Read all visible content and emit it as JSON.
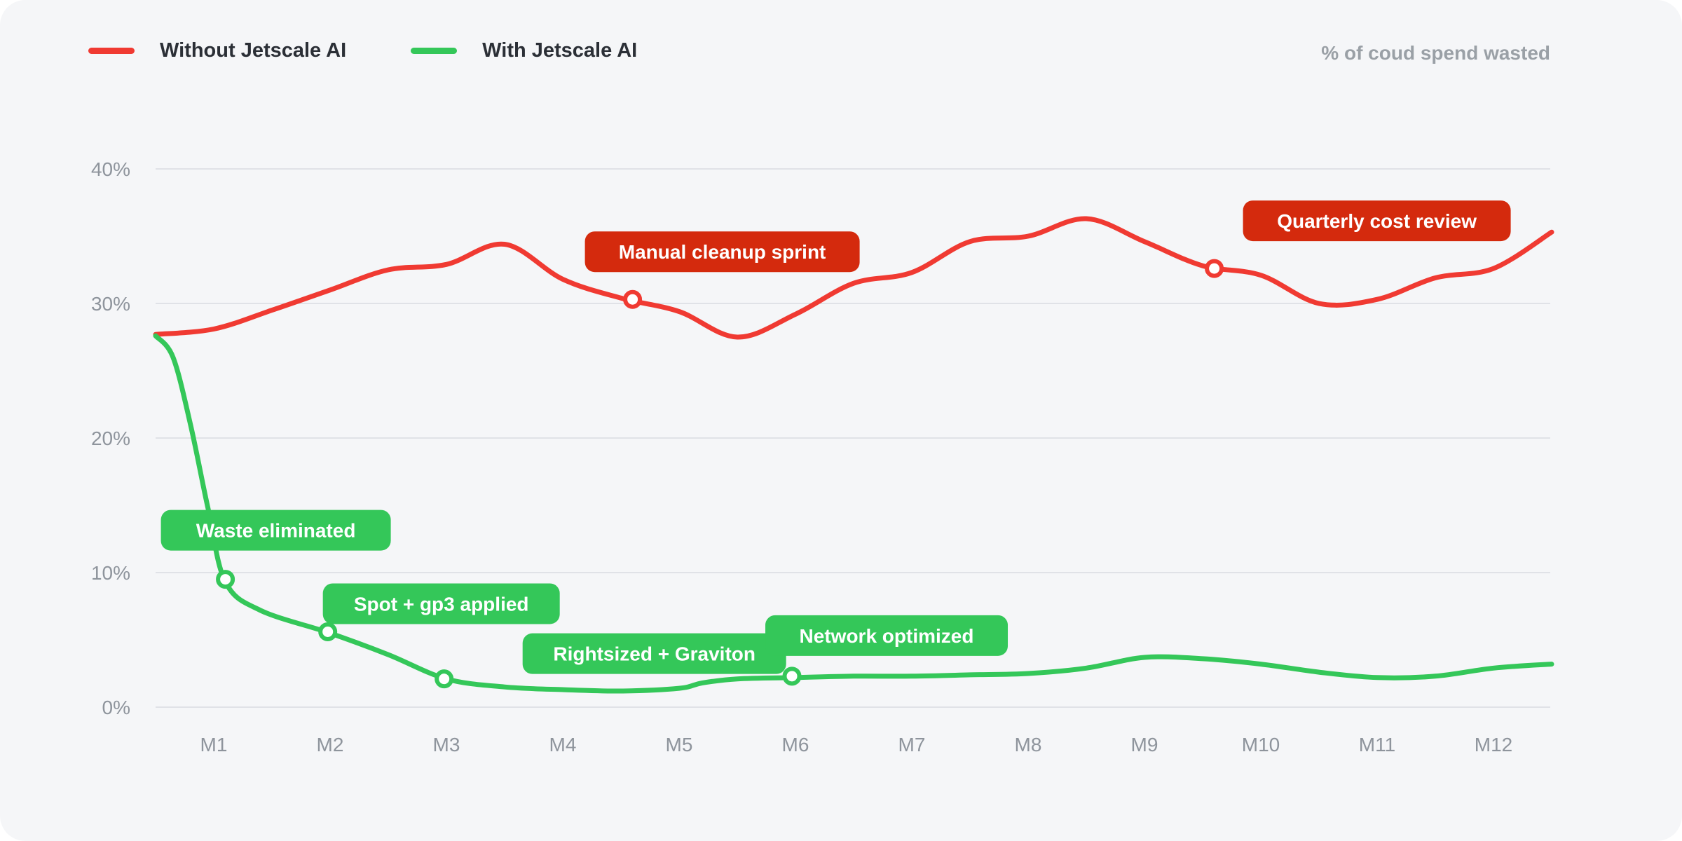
{
  "legend": {
    "items": [
      {
        "label": "Without Jetscale AI",
        "color": "#f03a32"
      },
      {
        "label": "With Jetscale AI",
        "color": "#34c759"
      }
    ]
  },
  "unit_label": "% of coud spend wasted",
  "chart_data": {
    "type": "line",
    "xlabel": "",
    "ylabel": "",
    "categories": [
      "M1",
      "M2",
      "M3",
      "M4",
      "M5",
      "M6",
      "M7",
      "M8",
      "M9",
      "M10",
      "M11",
      "M12"
    ],
    "y_ticks": [
      "0%",
      "10%",
      "20%",
      "30%",
      "40%"
    ],
    "ylim": [
      0,
      40
    ],
    "grid": true,
    "legend_position": "top-left",
    "series": [
      {
        "name": "Without Jetscale AI",
        "color": "#f03a32",
        "x": [
          0.5,
          1,
          1.5,
          2,
          2.5,
          3,
          3.5,
          4,
          4.5,
          5,
          5.5,
          6,
          6.5,
          7,
          7.5,
          8,
          8.5,
          9,
          9.5,
          10,
          10.5,
          11,
          11.5,
          12,
          12.5
        ],
        "values": [
          27.7,
          28.1,
          29.5,
          31.0,
          32.5,
          32.9,
          34.4,
          31.8,
          30.4,
          29.4,
          27.5,
          29.2,
          31.5,
          32.3,
          34.6,
          35.0,
          36.3,
          34.6,
          32.8,
          32.1,
          30.0,
          30.3,
          31.9,
          32.6,
          35.3
        ]
      },
      {
        "name": "With Jetscale AI",
        "color": "#34c759",
        "x": [
          0.5,
          0.65,
          0.8,
          0.95,
          1.1,
          1.4,
          2.0,
          2.5,
          3.0,
          3.5,
          4.0,
          4.5,
          5.0,
          5.2,
          5.5,
          6.0,
          6.5,
          7.0,
          7.5,
          8.0,
          8.5,
          9.0,
          9.5,
          10.0,
          10.5,
          11.0,
          11.5,
          12.0,
          12.5
        ],
        "values": [
          27.6,
          26.0,
          21.0,
          14.8,
          9.3,
          7.2,
          5.5,
          3.9,
          2.1,
          1.5,
          1.3,
          1.2,
          1.4,
          1.8,
          2.1,
          2.2,
          2.3,
          2.3,
          2.4,
          2.5,
          2.9,
          3.7,
          3.6,
          3.2,
          2.6,
          2.2,
          2.3,
          2.9,
          3.2
        ]
      }
    ],
    "annotations": [
      {
        "text": "Manual cleanup sprint",
        "series": "Without Jetscale AI",
        "x": 4.6,
        "y": 30.3,
        "color": "#d42a0d"
      },
      {
        "text": "Quarterly cost review",
        "series": "Without Jetscale AI",
        "x": 9.6,
        "y": 32.6,
        "color": "#d42a0d"
      },
      {
        "text": "Waste eliminated",
        "series": "With Jetscale AI",
        "x": 1.1,
        "y": 9.5,
        "color": "#34c759"
      },
      {
        "text": "Spot + gp3 applied",
        "series": "With Jetscale AI",
        "x": 1.98,
        "y": 5.6,
        "color": "#34c759"
      },
      {
        "text": "Rightsized + Graviton",
        "series": "With Jetscale AI",
        "x": 2.98,
        "y": 2.1,
        "color": "#34c759"
      },
      {
        "text": "Network optimized",
        "series": "With Jetscale AI",
        "x": 5.97,
        "y": 2.3,
        "color": "#34c759"
      }
    ]
  }
}
